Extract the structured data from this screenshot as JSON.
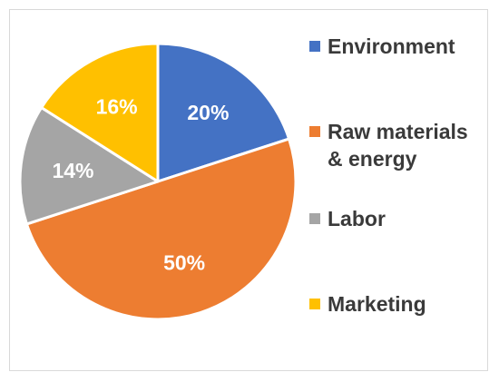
{
  "chart_data": {
    "type": "pie",
    "title": "",
    "legend_position": "right",
    "slices": [
      {
        "label": "Environment",
        "value": 20,
        "data_label": "20%",
        "color": "#4472C4",
        "label_color": "#ffffff"
      },
      {
        "label": "Raw materials & energy",
        "value": 50,
        "data_label": "50%",
        "color": "#ED7D31",
        "label_color": "#ffffff"
      },
      {
        "label": "Labor",
        "value": 14,
        "data_label": "14%",
        "color": "#A5A5A5",
        "label_color": "#ffffff"
      },
      {
        "label": "Marketing",
        "value": 16,
        "data_label": "16%",
        "color": "#FFC000",
        "label_color": "#ffffff"
      }
    ]
  },
  "legend": {
    "items": [
      {
        "label": "Environment",
        "color": "#4472C4"
      },
      {
        "label": "Raw materials\n& energy",
        "color": "#ED7D31"
      },
      {
        "label": "Labor",
        "color": "#A5A5A5"
      },
      {
        "label": "Marketing",
        "color": "#FFC000"
      }
    ]
  }
}
